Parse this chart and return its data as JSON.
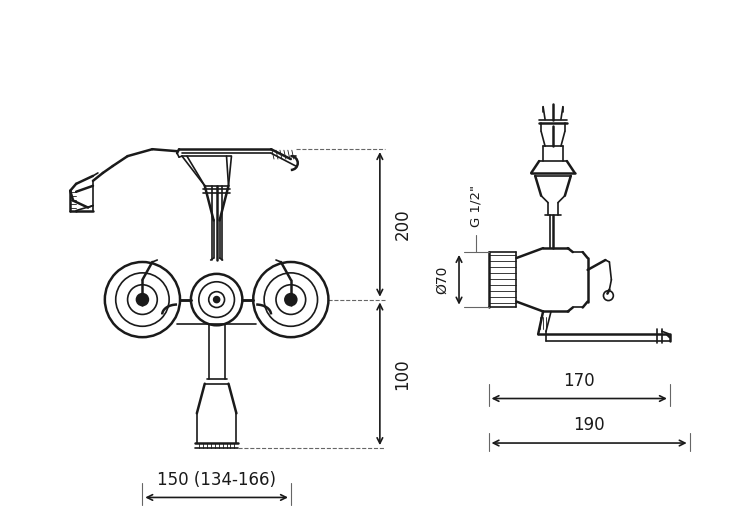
{
  "bg_color": "#ffffff",
  "line_color": "#1a1a1a",
  "dim_color": "#1a1a1a",
  "fig_width": 7.35,
  "fig_height": 5.21,
  "dpi": 100
}
